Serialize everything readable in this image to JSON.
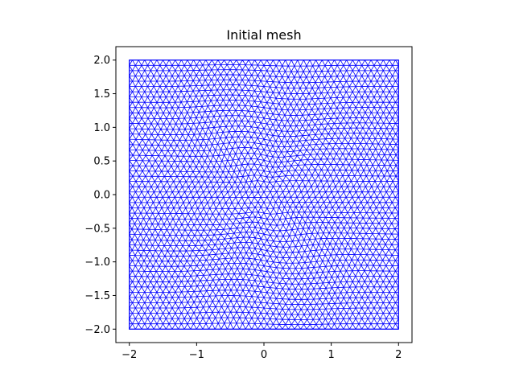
{
  "chart_data": {
    "type": "mesh",
    "title": "Initial mesh",
    "xlabel": "",
    "ylabel": "",
    "xlim": [
      -2.2,
      2.2
    ],
    "ylim": [
      -2.2,
      2.2
    ],
    "xticks": [
      -2,
      -1,
      0,
      1,
      2
    ],
    "yticks": [
      -2.0,
      -1.5,
      -1.0,
      -0.5,
      0.0,
      0.5,
      1.0,
      1.5,
      2.0
    ],
    "xtick_labels": [
      "−2",
      "−1",
      "0",
      "1",
      "2"
    ],
    "ytick_labels": [
      "−2.0",
      "−1.5",
      "−1.0",
      "−0.5",
      "0.0",
      "0.5",
      "1.0",
      "1.5",
      "2.0"
    ],
    "domain": {
      "xmin": -2,
      "xmax": 2,
      "ymin": -2,
      "ymax": 2
    },
    "mesh_color": "#0000ff",
    "grid": false,
    "legend": "none"
  }
}
